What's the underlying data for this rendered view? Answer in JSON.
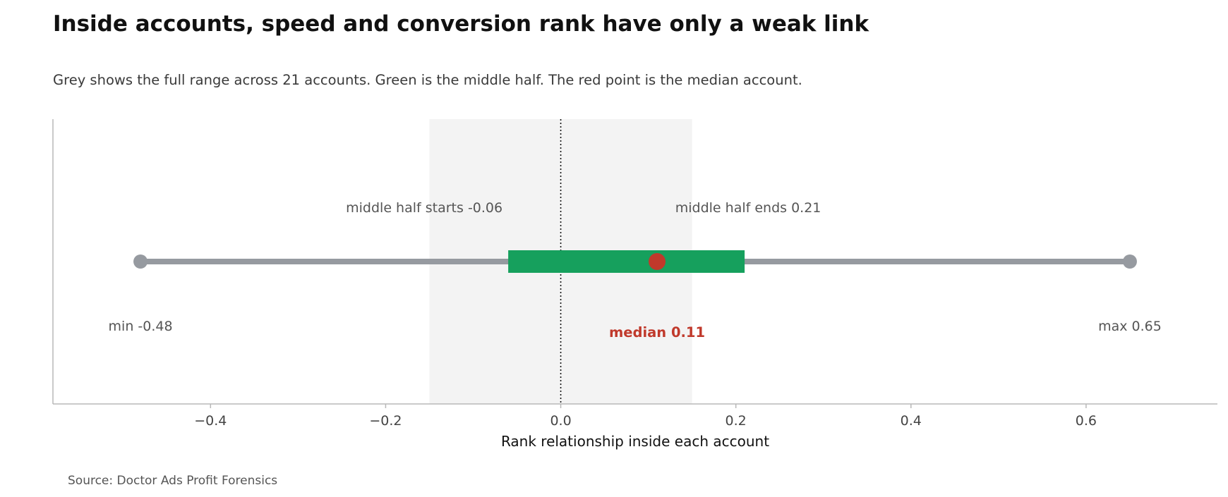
{
  "title": "Inside accounts, speed and conversion rank have only a weak link",
  "subtitle": "Grey shows the full range across 21 accounts. Green is the middle half. The red point is the median account.",
  "source": "Source: Doctor Ads Profit Forensics",
  "colors": {
    "range": "#969aa0",
    "middle_half": "#16a05d",
    "median": "#c0392b",
    "shade": "#f3f3f3",
    "annotation": "#555555",
    "axis": "#b8b8b8",
    "zero_line": "#111111"
  },
  "chart_data": {
    "type": "range",
    "xlabel": "Rank relationship inside each account",
    "xlim": [
      -0.58,
      0.75
    ],
    "xticks": [
      -0.4,
      -0.2,
      0.0,
      0.2,
      0.4,
      0.6
    ],
    "xtick_labels": [
      "−0.4",
      "−0.2",
      "0.0",
      "0.2",
      "0.4",
      "0.6"
    ],
    "grid": false,
    "shaded_band": [
      -0.15,
      0.15
    ],
    "reference_line": 0.0,
    "min": -0.48,
    "q1": -0.06,
    "median": 0.11,
    "q3": 0.21,
    "max": 0.65,
    "annotations": {
      "min": "min -0.48",
      "max": "max 0.65",
      "q1": "middle half starts -0.06",
      "q3": "middle half ends 0.21",
      "median": "median 0.11"
    }
  }
}
